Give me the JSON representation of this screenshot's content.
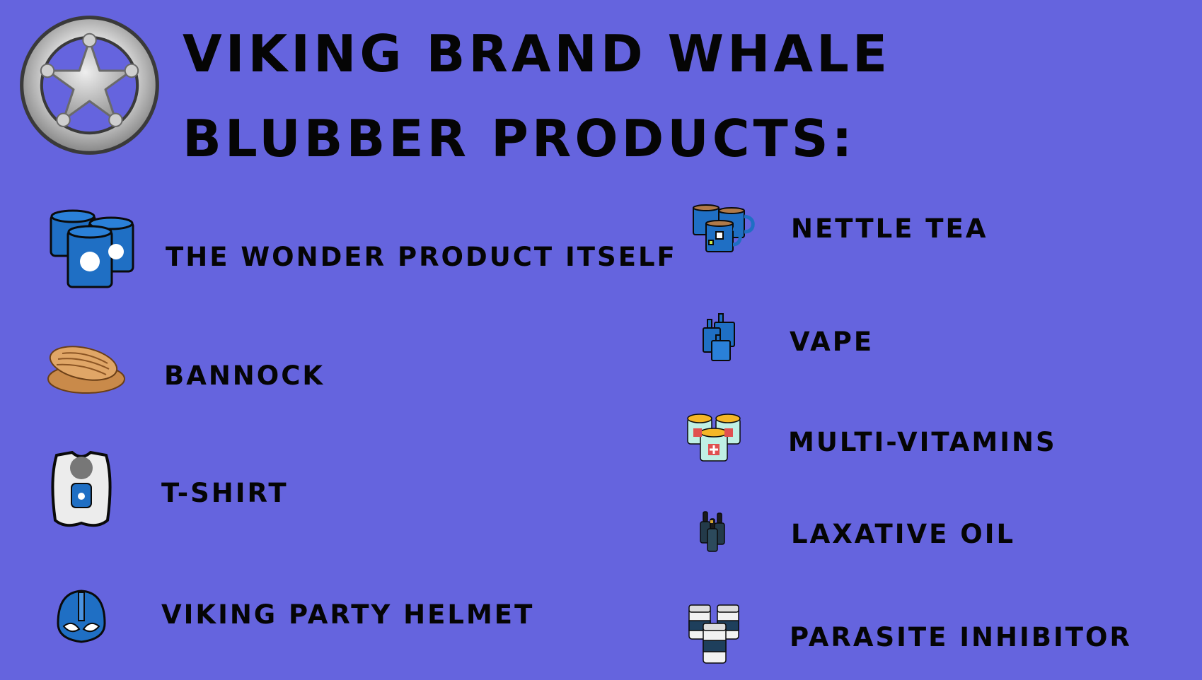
{
  "page": {
    "title": "VIKING BRAND WHALE BLUBBER PRODUCTS:",
    "background_color": "#6564de",
    "badge_icon": "sheriff-star-badge-icon"
  },
  "products": {
    "left": [
      {
        "label": "THE WONDER PRODUCT ITSELF",
        "icon": "blubber-barrels-icon"
      },
      {
        "label": "BANNOCK",
        "icon": "bannock-bread-icon"
      },
      {
        "label": "T-SHIRT",
        "icon": "tshirt-icon"
      },
      {
        "label": "VIKING PARTY HELMET",
        "icon": "viking-helmet-icon"
      }
    ],
    "right": [
      {
        "label": "NETTLE TEA",
        "icon": "tea-mugs-icon"
      },
      {
        "label": "VAPE",
        "icon": "vape-bottles-icon"
      },
      {
        "label": "MULTI-VITAMINS",
        "icon": "vitamin-jars-icon"
      },
      {
        "label": "LAXATIVE OIL",
        "icon": "oil-dropper-bottles-icon"
      },
      {
        "label": "PARASITE INHIBITOR",
        "icon": "pill-bottles-icon"
      }
    ]
  }
}
